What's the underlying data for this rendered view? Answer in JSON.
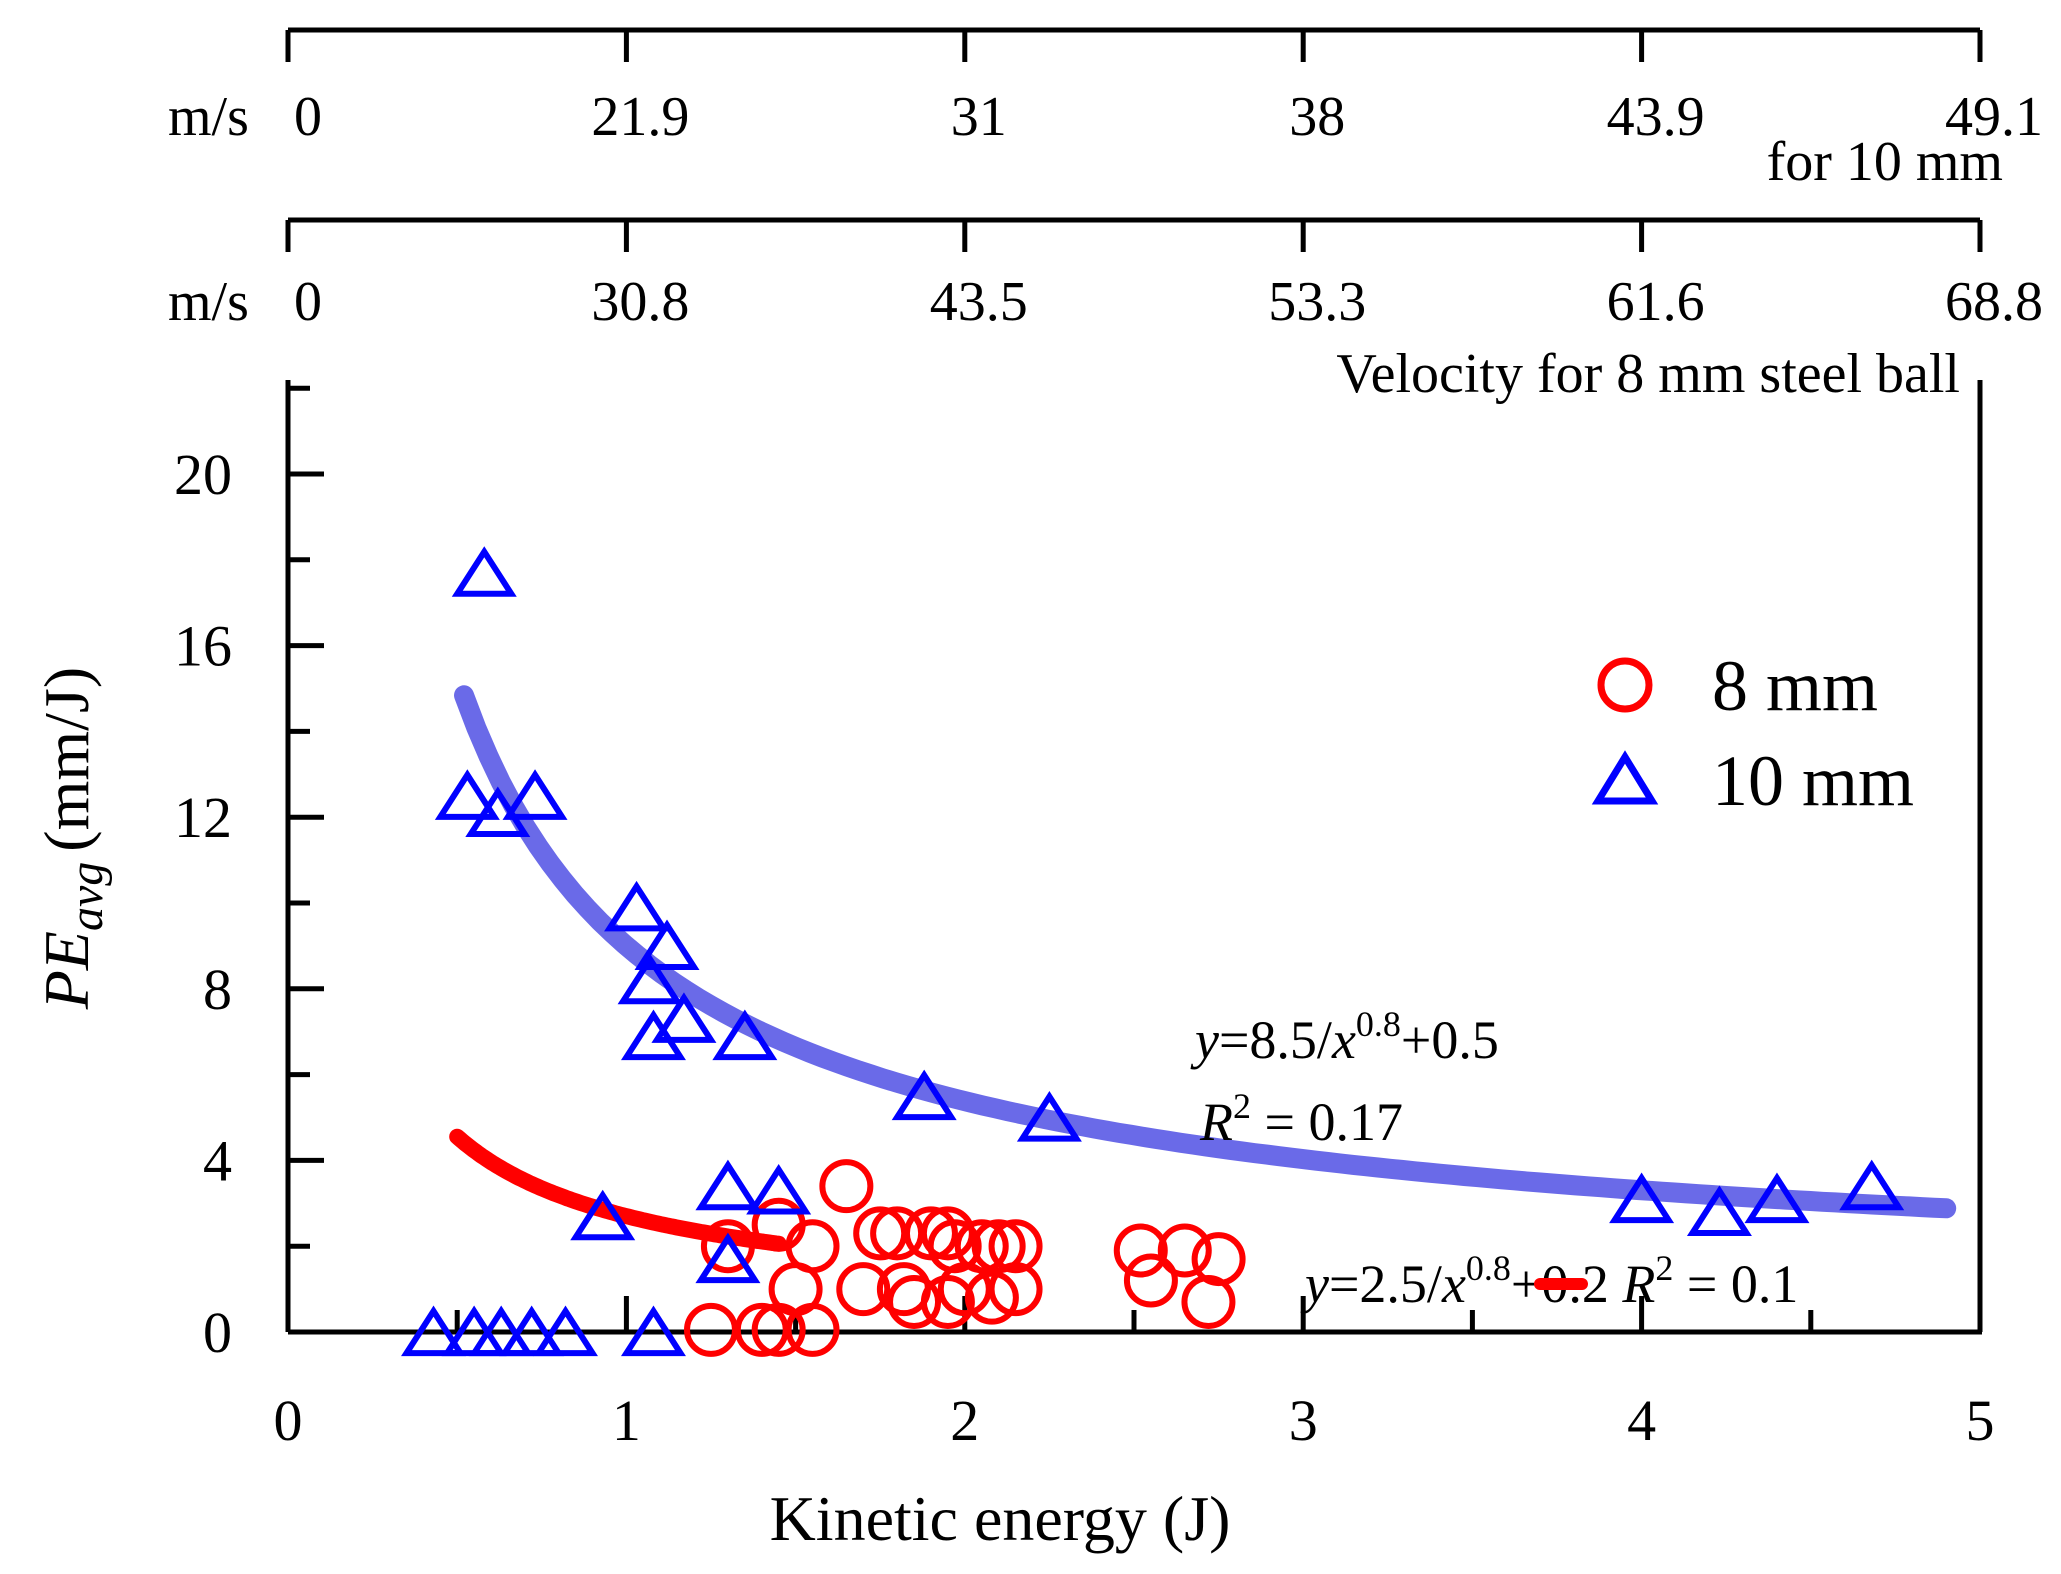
{
  "chart_data": {
    "type": "scatter",
    "xlabel": "Kinetic energy (J)",
    "ylabel_main": "PE",
    "ylabel_sub": "avg",
    "ylabel_unit": "(mm/J)",
    "xlim": [
      0,
      5
    ],
    "ylim": [
      0,
      22
    ],
    "x_ticks": [
      "0",
      "1",
      "2",
      "3",
      "4",
      "5"
    ],
    "y_ticks": [
      "0",
      "4",
      "8",
      "12",
      "16",
      "20"
    ],
    "top_axis_10mm": {
      "unit": "m/s",
      "ticks": [
        "0",
        "21.9",
        "31",
        "38",
        "43.9",
        "49.1"
      ],
      "caption": "for 10 mm"
    },
    "top_axis_8mm": {
      "unit": "m/s",
      "ticks": [
        "0",
        "30.8",
        "43.5",
        "53.3",
        "61.6",
        "68.8"
      ],
      "caption": "Velocity for 8 mm steel ball"
    },
    "series": [
      {
        "name": "8 mm",
        "marker": "circle",
        "color": "#ff0000",
        "points": [
          [
            1.3,
            2.0
          ],
          [
            1.45,
            2.5
          ],
          [
            1.55,
            2.0
          ],
          [
            1.5,
            1.0
          ],
          [
            1.65,
            3.4
          ],
          [
            1.7,
            1.0
          ],
          [
            1.75,
            2.3
          ],
          [
            1.8,
            2.3
          ],
          [
            1.82,
            1.0
          ],
          [
            1.85,
            0.7
          ],
          [
            1.9,
            2.3
          ],
          [
            1.95,
            2.3
          ],
          [
            1.97,
            2.0
          ],
          [
            2.0,
            1.0
          ],
          [
            1.95,
            0.7
          ],
          [
            2.05,
            2.0
          ],
          [
            2.1,
            2.0
          ],
          [
            2.15,
            2.0
          ],
          [
            2.08,
            0.8
          ],
          [
            2.15,
            1.0
          ],
          [
            2.52,
            1.9
          ],
          [
            2.55,
            1.2
          ],
          [
            2.65,
            1.9
          ],
          [
            2.75,
            1.7
          ],
          [
            2.72,
            0.7
          ],
          [
            1.25,
            0.05
          ],
          [
            1.4,
            0.05
          ],
          [
            1.45,
            0.05
          ],
          [
            1.55,
            0.05
          ]
        ]
      },
      {
        "name": "10 mm",
        "marker": "triangle",
        "color": "#0000ff",
        "points": [
          [
            0.58,
            17.6
          ],
          [
            0.53,
            12.4
          ],
          [
            0.62,
            12.0
          ],
          [
            0.73,
            12.4
          ],
          [
            1.03,
            9.8
          ],
          [
            1.12,
            8.9
          ],
          [
            1.07,
            8.1
          ],
          [
            1.08,
            6.8
          ],
          [
            1.17,
            7.2
          ],
          [
            1.35,
            6.8
          ],
          [
            1.88,
            5.4
          ],
          [
            2.25,
            4.9
          ],
          [
            1.3,
            3.3
          ],
          [
            1.45,
            3.2
          ],
          [
            1.3,
            1.6
          ],
          [
            0.93,
            2.6
          ],
          [
            4.0,
            3.0
          ],
          [
            4.23,
            2.7
          ],
          [
            4.4,
            3.0
          ],
          [
            4.68,
            3.3
          ],
          [
            0.43,
            -0.1
          ],
          [
            0.55,
            -0.1
          ],
          [
            0.63,
            -0.1
          ],
          [
            0.72,
            -0.1
          ],
          [
            0.82,
            -0.1
          ],
          [
            1.08,
            -0.1
          ]
        ]
      }
    ],
    "fits": [
      {
        "series": "10 mm",
        "a": 8.5,
        "b": 0.8,
        "c": 0.5,
        "range": [
          0.52,
          4.9
        ],
        "color": "#5a5ae6",
        "eq_y": "y",
        "eq_rest": "=8.5/",
        "eq_x": "x",
        "eq_exp": "0.8",
        "eq_tail": "+0.5",
        "r2_symbol": "R",
        "r2_exp": "2",
        "r2_text": " = 0.17"
      },
      {
        "series": "8 mm",
        "a": 2.5,
        "b": 0.8,
        "c": 0.2,
        "range": [
          0.5,
          1.45
        ],
        "color": "#ff0000",
        "eq_y": "y",
        "eq_rest": "=2.5/",
        "eq_x": "x",
        "eq_exp": "0.8",
        "eq_tail": "+0.2 ",
        "r2_symbol": "R",
        "r2_exp": "2",
        "r2_text": " = 0.1"
      }
    ],
    "legend": [
      {
        "label": "8 mm",
        "marker": "circle",
        "color": "#ff0000"
      },
      {
        "label": "10 mm",
        "marker": "triangle",
        "color": "#0000ff"
      }
    ]
  }
}
